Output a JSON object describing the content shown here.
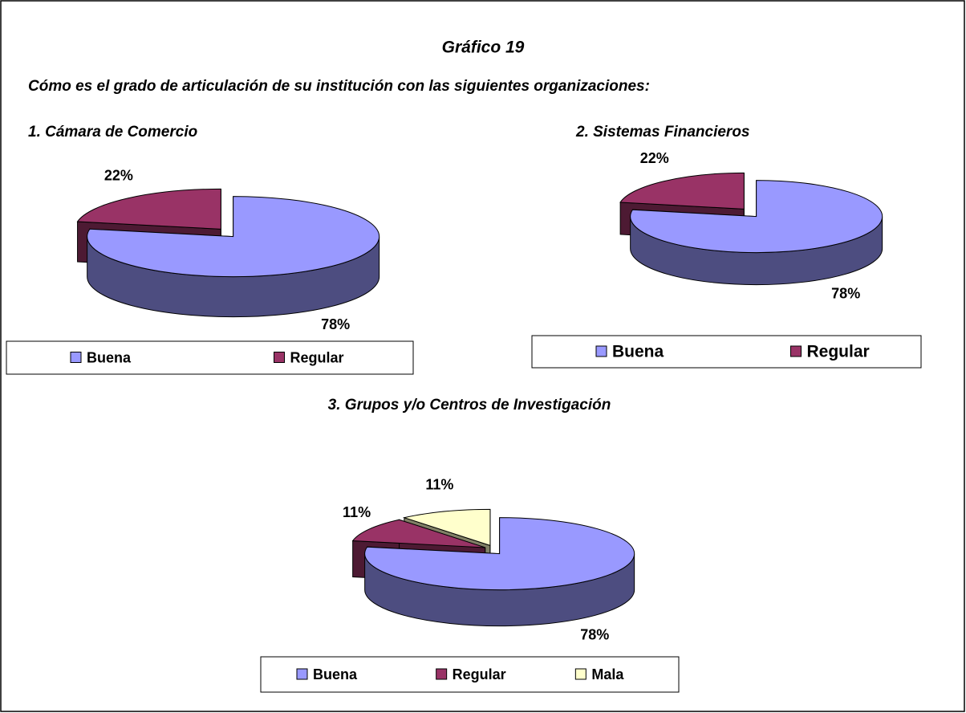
{
  "title": "Gráfico 19",
  "subtitle": "Cómo es el grado de articulación de su institución con las siguientes organizaciones:",
  "chart_data": [
    {
      "type": "pie",
      "title": "1. Cámara de Comercio",
      "categories": [
        "Buena",
        "Regular"
      ],
      "values": [
        78,
        22
      ],
      "value_labels": [
        "78%",
        "22%"
      ],
      "colors": [
        "#9999ff",
        "#993366"
      ],
      "legend": "bottom"
    },
    {
      "type": "pie",
      "title": "2. Sistemas Financieros",
      "categories": [
        "Buena",
        "Regular"
      ],
      "values": [
        78,
        22
      ],
      "value_labels": [
        "78%",
        "22%"
      ],
      "colors": [
        "#9999ff",
        "#993366"
      ],
      "legend": "bottom"
    },
    {
      "type": "pie",
      "title": "3. Grupos y/o Centros de Investigación",
      "categories": [
        "Buena",
        "Regular",
        "Mala"
      ],
      "values": [
        78,
        11,
        11
      ],
      "value_labels": [
        "78%",
        "11%",
        "11%"
      ],
      "colors": [
        "#9999ff",
        "#993366",
        "#ffffcc"
      ],
      "legend": "bottom"
    }
  ]
}
